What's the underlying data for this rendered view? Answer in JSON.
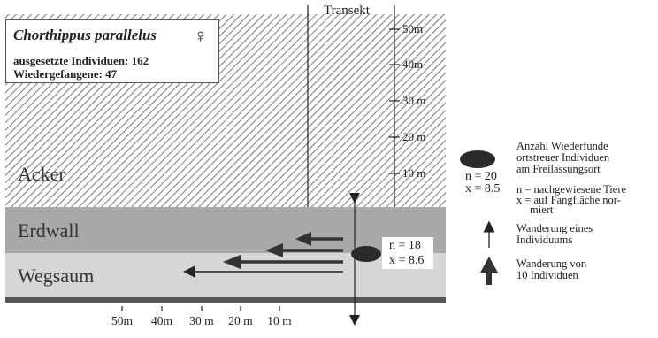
{
  "info": {
    "species": "Chorthippus parallelus",
    "sex_symbol": "♀",
    "released": "ausgesetzte Individuen: 162",
    "recaptured": "Wiedergefangene: 47"
  },
  "transect_label": "Transekt",
  "zones": {
    "field": "Acker",
    "bank": "Erdwall",
    "verge": "Wegsaum"
  },
  "transect_marks": [
    "50m",
    "40m",
    "30 m",
    "20 m",
    "10 m"
  ],
  "release_stats": {
    "n": "n = 18",
    "x": "x = 8.6"
  },
  "bottom_axis": [
    "50m",
    "40m",
    "30 m",
    "20 m",
    "10 m"
  ],
  "legend": {
    "ellipse_text": [
      "Anzahl Wiederfunde",
      "ortstreuer Individuen",
      "am Freilassungsort"
    ],
    "example_n": "n = 20",
    "example_x": "x = 8.5",
    "n_def": "n = nachgewiesene Tiere",
    "x_def": [
      "x = auf Fangfläche nor-",
      "miert"
    ],
    "thin_arrow_text": [
      "Wanderung eines",
      "Individuums"
    ],
    "thick_arrow_text": [
      "Wanderung von",
      "10 Individuen"
    ]
  },
  "colors": {
    "field_hatch": "#555555",
    "bank": "#a9a9a9",
    "verge": "#d8d8d8",
    "marker": "#2a2a2a"
  }
}
